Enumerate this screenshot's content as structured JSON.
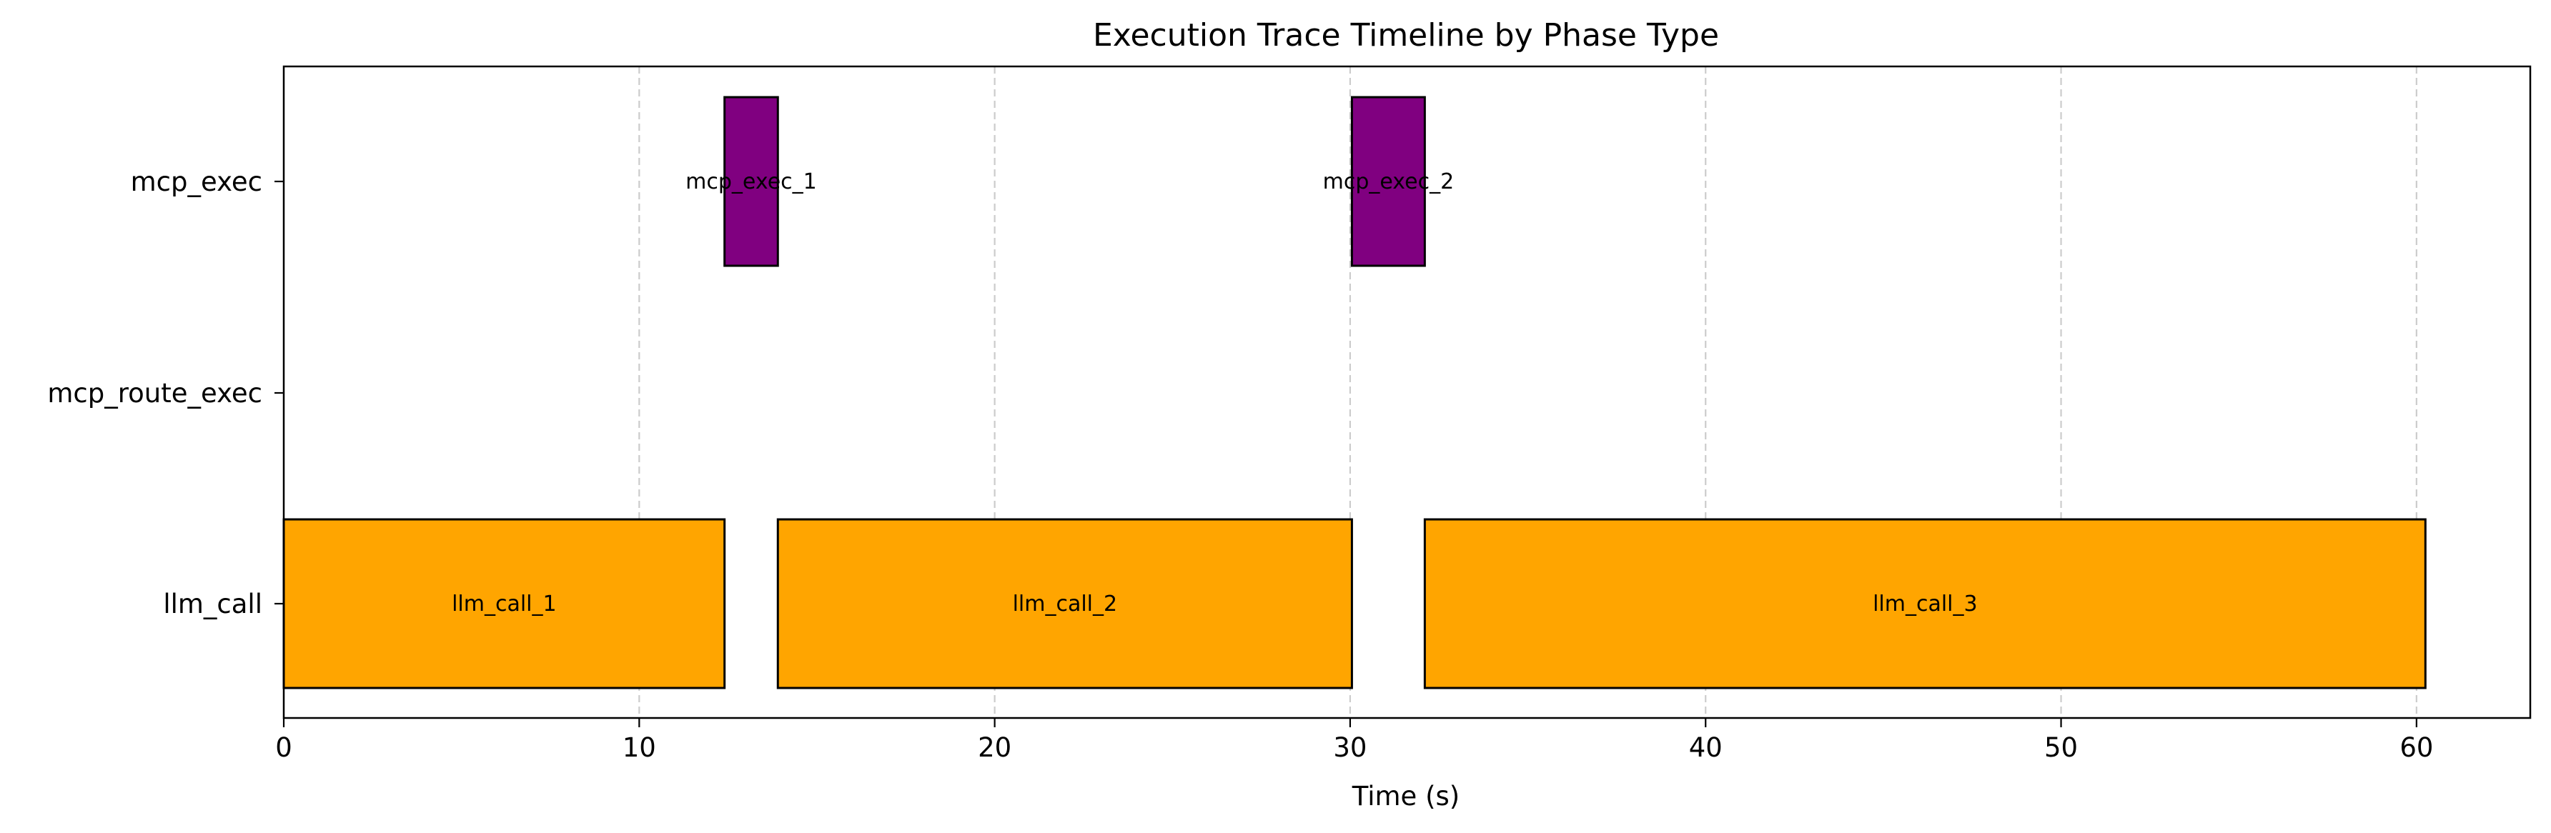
{
  "chart_data": {
    "type": "timeline",
    "title": "Execution Trace Timeline by Phase Type",
    "xlabel": "Time (s)",
    "ylabel": "",
    "xlim": [
      0,
      63.2
    ],
    "xticks": [
      0,
      10,
      20,
      30,
      40,
      50,
      60
    ],
    "grid": "x-dashed",
    "rows": [
      "mcp_exec",
      "mcp_route_exec",
      "llm_call"
    ],
    "colors": {
      "llm_call": "#FFA500",
      "mcp_exec": "#800080"
    },
    "segments": [
      {
        "label": "llm_call_1",
        "row": "llm_call",
        "start": 0.0,
        "end": 12.4
      },
      {
        "label": "mcp_exec_1",
        "row": "mcp_exec",
        "start": 12.4,
        "end": 13.9
      },
      {
        "label": "llm_call_2",
        "row": "llm_call",
        "start": 13.9,
        "end": 30.05
      },
      {
        "label": "mcp_exec_2",
        "row": "mcp_exec",
        "start": 30.05,
        "end": 32.1
      },
      {
        "label": "llm_call_3",
        "row": "llm_call",
        "start": 32.1,
        "end": 60.25
      }
    ]
  }
}
